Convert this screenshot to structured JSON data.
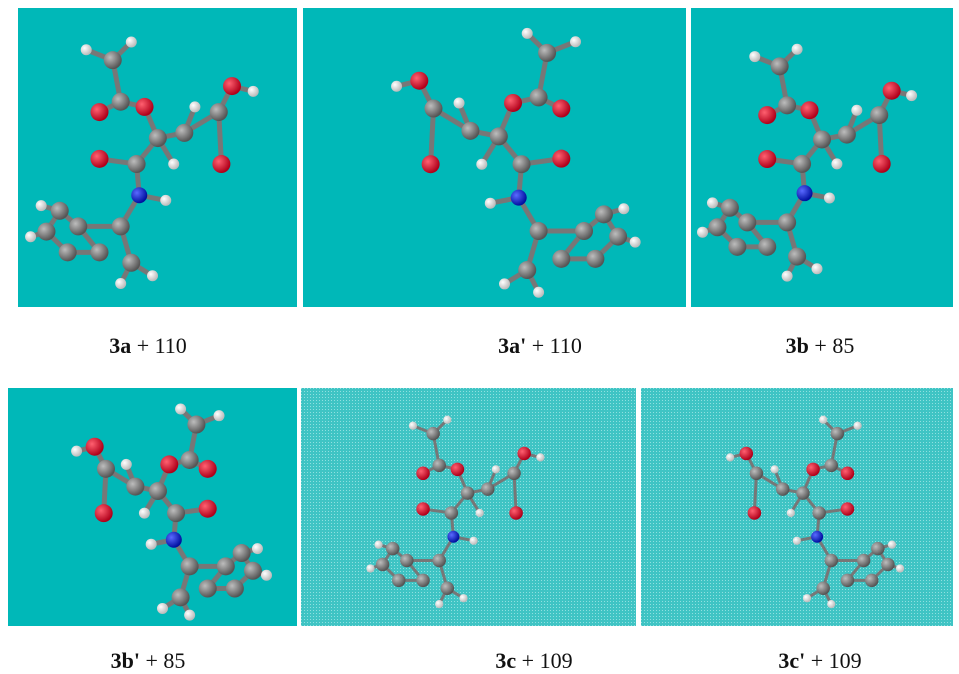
{
  "panels": [
    {
      "compound": "3a",
      "energy": "+ 110"
    },
    {
      "compound": "3a'",
      "energy": "+ 110"
    },
    {
      "compound": "3b",
      "energy": "+ 85"
    },
    {
      "compound": "3b'",
      "energy": "+ 85"
    },
    {
      "compound": "3c",
      "energy": "+ 109"
    },
    {
      "compound": "3c'",
      "energy": "+ 109"
    }
  ]
}
